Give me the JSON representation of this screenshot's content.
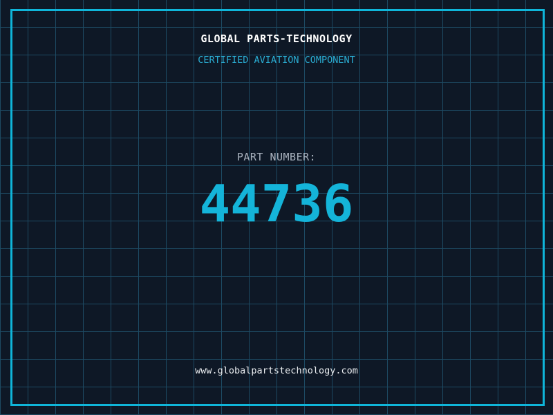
{
  "header": {
    "title": "GLOBAL PARTS-TECHNOLOGY",
    "subtitle": "CERTIFIED AVIATION COMPONENT"
  },
  "part": {
    "label": "PART NUMBER:",
    "number": "44736"
  },
  "footer": {
    "website": "www.globalpartstechnology.com"
  },
  "colors": {
    "background": "#0e1826",
    "grid_line": "#1d4a63",
    "frame": "#0fb5d9",
    "title_text": "#ffffff",
    "subtitle_text": "#2aaed4",
    "part_label_text": "#aab3bf",
    "part_number_text": "#14b4d9",
    "website_text": "#e8ebee"
  }
}
